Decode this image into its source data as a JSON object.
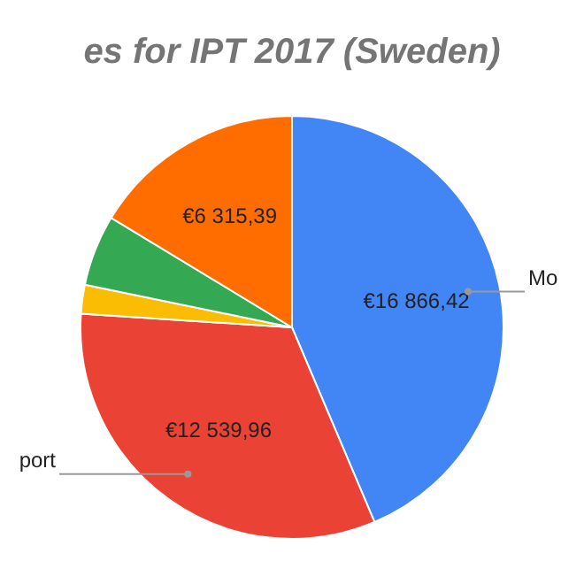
{
  "chart_data": {
    "type": "pie",
    "title": "es for IPT 2017 (Sweden)",
    "categories": [
      "Mo",
      "port",
      null,
      null,
      null
    ],
    "values": [
      16866.42,
      12539.96,
      850,
      2100,
      6315.39
    ],
    "value_labels": [
      "€16 866,42",
      "€12 539,96",
      null,
      null,
      "€6 315,39"
    ],
    "colors": [
      "#4285f4",
      "#ea4335",
      "#fbbc04",
      "#34a853",
      "#ff6d01"
    ],
    "legend": false
  }
}
